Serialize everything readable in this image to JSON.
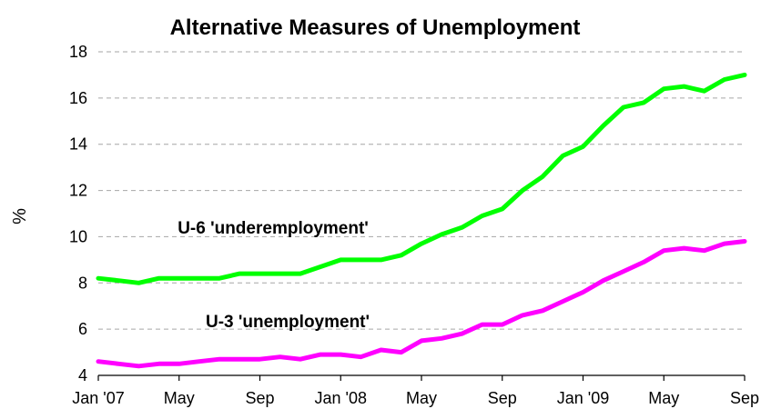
{
  "chart_data": {
    "type": "line",
    "title": "Alternative Measures of Unemployment",
    "ylabel": "%",
    "xlabel": "",
    "ylim": [
      4,
      18
    ],
    "yticks": [
      4,
      6,
      8,
      10,
      12,
      14,
      16,
      18
    ],
    "grid": true,
    "x": [
      "Jan '07",
      "Feb '07",
      "Mar '07",
      "Apr '07",
      "May '07",
      "Jun '07",
      "Jul '07",
      "Aug '07",
      "Sep '07",
      "Oct '07",
      "Nov '07",
      "Dec '07",
      "Jan '08",
      "Feb '08",
      "Mar '08",
      "Apr '08",
      "May '08",
      "Jun '08",
      "Jul '08",
      "Aug '08",
      "Sep '08",
      "Oct '08",
      "Nov '08",
      "Dec '08",
      "Jan '09",
      "Feb '09",
      "Mar '09",
      "Apr '09",
      "May '09",
      "Jun '09",
      "Jul '09",
      "Aug '09",
      "Sep '09"
    ],
    "xtick_labels": [
      {
        "index": 0,
        "label": "Jan '07"
      },
      {
        "index": 4,
        "label": "May"
      },
      {
        "index": 8,
        "label": "Sep"
      },
      {
        "index": 12,
        "label": "Jan '08"
      },
      {
        "index": 16,
        "label": "May"
      },
      {
        "index": 20,
        "label": "Sep"
      },
      {
        "index": 24,
        "label": "Jan '09"
      },
      {
        "index": 28,
        "label": "May"
      },
      {
        "index": 32,
        "label": "Sep"
      }
    ],
    "series": [
      {
        "name": "U-6 'underemployment'",
        "color": "#00ff00",
        "values": [
          8.2,
          8.1,
          8.0,
          8.2,
          8.2,
          8.2,
          8.2,
          8.4,
          8.4,
          8.4,
          8.4,
          8.7,
          9.0,
          9.0,
          9.0,
          9.2,
          9.7,
          10.1,
          10.4,
          10.9,
          11.2,
          12.0,
          12.6,
          13.5,
          13.9,
          14.8,
          15.6,
          15.8,
          16.4,
          16.5,
          16.3,
          16.8,
          17.0
        ],
        "label_position": "above line, left of middle"
      },
      {
        "name": "U-3 'unemployment'",
        "color": "#ff00ff",
        "values": [
          4.6,
          4.5,
          4.4,
          4.5,
          4.5,
          4.6,
          4.7,
          4.7,
          4.7,
          4.8,
          4.7,
          4.9,
          4.9,
          4.8,
          5.1,
          5.0,
          5.5,
          5.6,
          5.8,
          6.2,
          6.2,
          6.6,
          6.8,
          7.2,
          7.6,
          8.1,
          8.5,
          8.9,
          9.4,
          9.5,
          9.4,
          9.7,
          9.8
        ],
        "label_position": "above line, left of middle"
      }
    ]
  }
}
